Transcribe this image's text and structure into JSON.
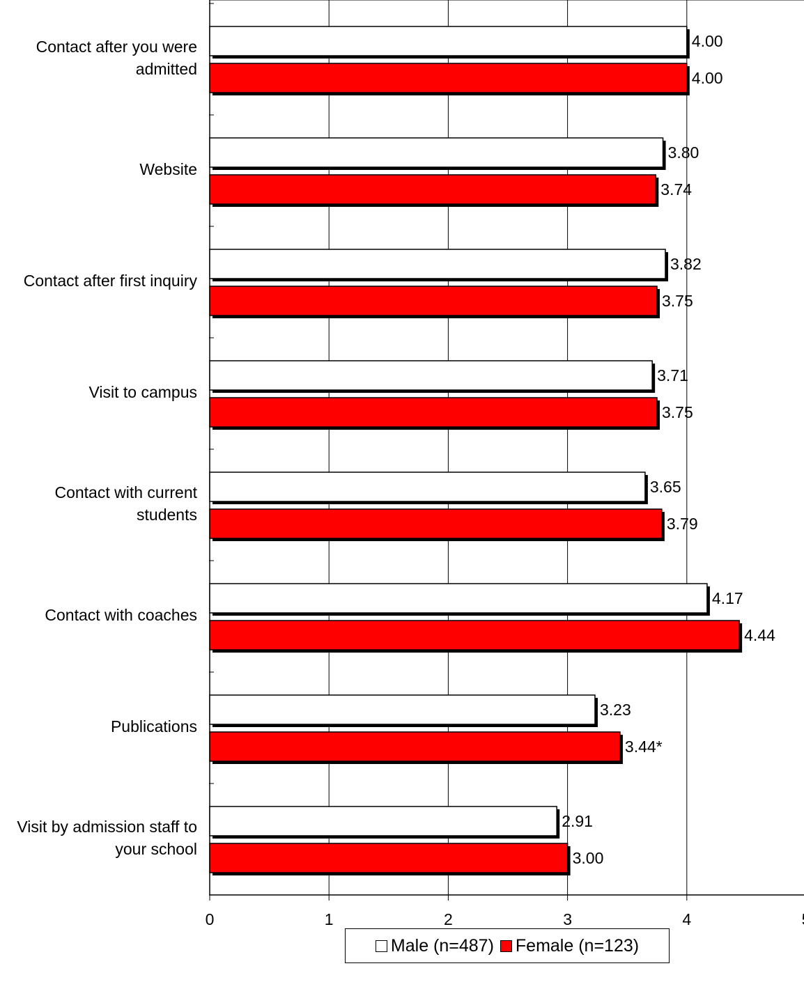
{
  "chart_data": {
    "type": "bar",
    "orientation": "horizontal",
    "categories": [
      [
        "Contact after you were",
        "admitted"
      ],
      [
        "Website"
      ],
      [
        "Contact after first inquiry"
      ],
      [
        "Visit to campus"
      ],
      [
        "Contact with current",
        "students"
      ],
      [
        "Contact with coaches"
      ],
      [
        "Publications"
      ],
      [
        "Visit by admission staff to",
        "your school"
      ]
    ],
    "series": [
      {
        "name": "Male (n=487)",
        "color": "#ffffff",
        "values": [
          4.0,
          3.8,
          3.82,
          3.71,
          3.65,
          4.17,
          3.23,
          2.91
        ],
        "labels": [
          "4.00",
          "3.80",
          "3.82",
          "3.71",
          "3.65",
          "4.17",
          "3.23",
          "2.91"
        ]
      },
      {
        "name": "Female (n=123)",
        "color": "#ff0000",
        "values": [
          4.0,
          3.74,
          3.75,
          3.75,
          3.79,
          4.44,
          3.44,
          3.0
        ],
        "labels": [
          "4.00",
          "3.74",
          "3.75",
          "3.75",
          "3.79",
          "4.44",
          "3.44*",
          "3.00"
        ]
      }
    ],
    "xlim": [
      0,
      5
    ],
    "xticks": [
      "0",
      "1",
      "2",
      "3",
      "4",
      "5"
    ],
    "grid": true,
    "legend_position": "bottom",
    "title": "",
    "xlabel": "",
    "ylabel": ""
  }
}
